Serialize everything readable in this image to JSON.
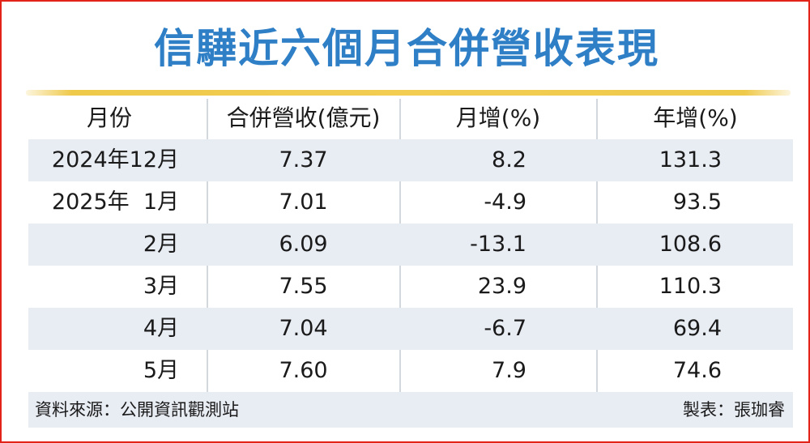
{
  "title": "信驊近六個月合併營收表現",
  "table": {
    "headers": [
      "月份",
      "合併營收(億元)",
      "月增(%)",
      "年增(%)"
    ],
    "rows": [
      [
        "2024年12月",
        "7.37",
        "8.2",
        "131.3"
      ],
      [
        "2025年  1月",
        "7.01",
        "-4.9",
        "93.5"
      ],
      [
        "2月",
        "6.09",
        "-13.1",
        "108.6"
      ],
      [
        "3月",
        "7.55",
        "23.9",
        "110.3"
      ],
      [
        "4月",
        "7.04",
        "-6.7",
        "69.4"
      ],
      [
        "5月",
        "7.60",
        "7.9",
        "74.6"
      ]
    ]
  },
  "footer": {
    "source": "資料來源：公開資訊觀測站",
    "maker": "製表：張珈睿"
  },
  "colors": {
    "title": "#2f7fc7",
    "border": "#e2231a",
    "rule": "#efc94a",
    "row_shade": "#e8ecf3"
  }
}
